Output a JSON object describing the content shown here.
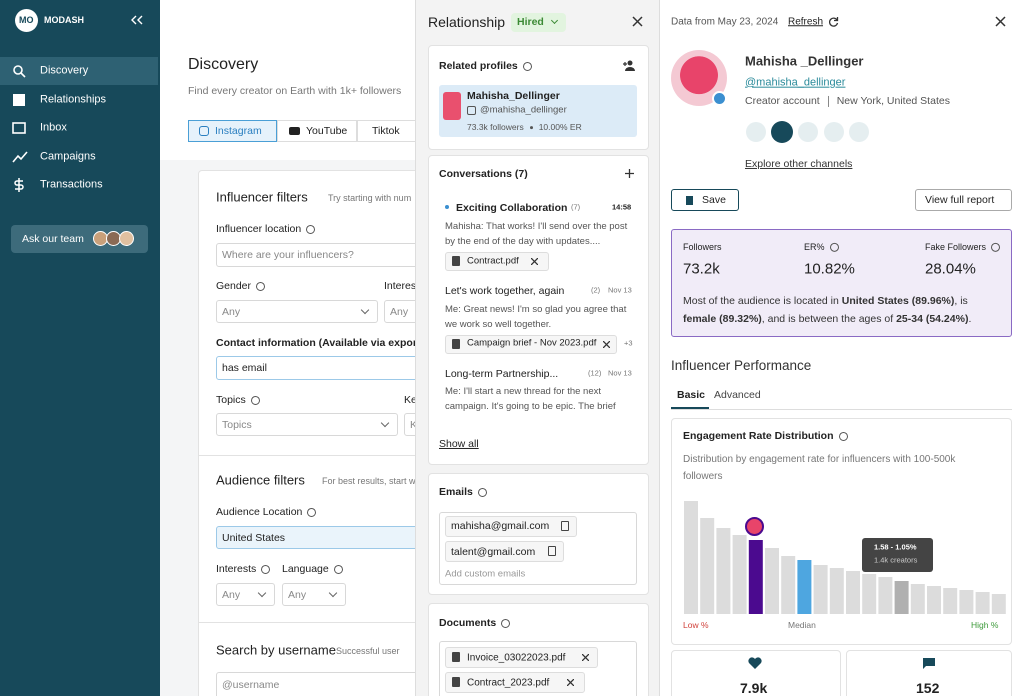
{
  "sidebar": {
    "logo": "MO",
    "brand": "MODASH",
    "nav": [
      "Discovery",
      "Relationships",
      "Inbox",
      "Campaigns",
      "Transactions"
    ],
    "team_button": "Ask our team"
  },
  "discovery": {
    "title": "Discovery",
    "subtitle": "Find every creator on Earth with 1k+ followers",
    "tabs": [
      "Instagram",
      "YouTube",
      "Tiktok"
    ],
    "influencer_filters": {
      "title": "Influencer filters",
      "hint": "Try starting with num",
      "location_label": "Influencer location",
      "location_placeholder": "Where are your influencers?",
      "gender_label": "Gender",
      "gender_value": "Any",
      "interests_label": "Interes",
      "interests_value": "Any",
      "contact_label": "Contact information (Available via export",
      "contact_value": "has email",
      "topics_label": "Topics",
      "topics_value": "Topics",
      "keywords_label": "Ke",
      "keywords_value": "K"
    },
    "audience_filters": {
      "title": "Audience filters",
      "hint": "For best results, start w",
      "location_label": "Audience Location",
      "location_value": "United States",
      "interests_label": "Interests",
      "interests_value": "Any",
      "language_label": "Language",
      "language_value": "Any"
    },
    "search": {
      "title": "Search by username",
      "hint": "Successful user",
      "placeholder": "@username"
    }
  },
  "relationship": {
    "title": "Relationship",
    "status": "Hired",
    "related": {
      "title": "Related profiles",
      "name": "Mahisha_Dellinger",
      "handle": "@mahisha_dellinger",
      "followers": "73.3k followers",
      "er": "10.00% ER"
    },
    "conversations": {
      "title": "Conversations (7)",
      "items": [
        {
          "title": "Exciting Collaboration",
          "count": "(7)",
          "time": "14:58",
          "preview": "Mahisha: That works! I'll send over the post by the end of the day with updates....",
          "attachment": "Contract.pdf"
        },
        {
          "title": "Let's work together, again",
          "count": "(2)",
          "time": "Nov 13",
          "preview": "Me: Great news! I'm so glad you agree that we work so well together.",
          "attachment": "Campaign brief - Nov 2023.pdf",
          "more": "+3"
        },
        {
          "title": "Long-term Partnership...",
          "count": "(12)",
          "time": "Nov 13",
          "preview": "Me: I'll start a new thread for the next campaign. It's going to be epic. The brief wi..."
        }
      ],
      "show_all": "Show all"
    },
    "emails": {
      "title": "Emails",
      "items": [
        "mahisha@gmail.com",
        "talent@gmail.com"
      ],
      "placeholder": "Add custom emails"
    },
    "documents": {
      "title": "Documents",
      "items": [
        "Invoice_03022023.pdf",
        "Contract_2023.pdf"
      ]
    }
  },
  "profile": {
    "data_date": "Data from May 23, 2024",
    "refresh": "Refresh",
    "name": "Mahisha _Dellinger",
    "handle": "@mahisha_dellinger",
    "account_type": "Creator account",
    "location": "New York, United States",
    "explore": "Explore other channels",
    "save": "Save",
    "full_report": "View full report",
    "stats": [
      {
        "label": "Followers",
        "value": "73.2k"
      },
      {
        "label": "ER%",
        "value": "10.82%"
      },
      {
        "label": "Fake Followers",
        "value": "28.04%"
      }
    ],
    "summary": [
      "Most of the audience is located in ",
      "United States (89.96%)",
      ", is ",
      "female (89.32%)",
      ", and is between the ages of ",
      "25-34 (54.24%)",
      "."
    ]
  },
  "performance": {
    "title": "Influencer Performance",
    "tabs": [
      "Basic",
      "Advanced"
    ],
    "chart": {
      "title": "Engagement Rate Distribution",
      "description": "Distribution by engagement rate for influencers with 100-500k followers",
      "values": [
        113,
        96,
        86,
        79,
        74,
        66,
        58,
        54,
        49,
        46,
        43,
        40,
        37,
        33,
        30,
        28,
        26,
        24,
        22,
        20
      ],
      "colors": [
        "#dcdcdc",
        "#dcdcdc",
        "#dcdcdc",
        "#dcdcdc",
        "#4b0a8f",
        "#dcdcdc",
        "#dcdcdc",
        "#4ea6e0",
        "#dcdcdc",
        "#dcdcdc",
        "#dcdcdc",
        "#dcdcdc",
        "#dcdcdc",
        "#b0b0b0",
        "#dcdcdc",
        "#dcdcdc",
        "#dcdcdc",
        "#dcdcdc",
        "#dcdcdc",
        "#dcdcdc"
      ],
      "tooltip_range": "1.58 - 1.05%",
      "tooltip_count": "1.4k creators",
      "low_label": "Low %",
      "median_label": "Median",
      "high_label": "High %"
    },
    "cards": [
      "7.9k",
      "152"
    ]
  }
}
